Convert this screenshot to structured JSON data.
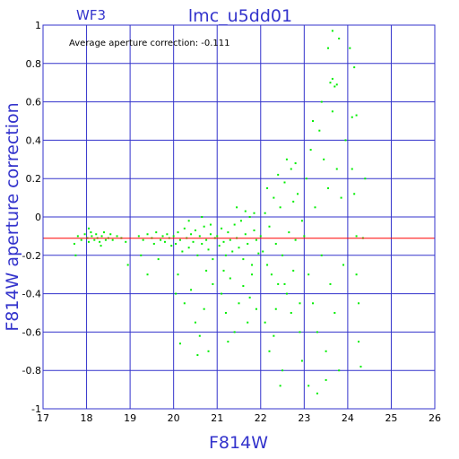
{
  "chart_data": {
    "type": "scatter",
    "title": "lmc_u5dd01",
    "corner_label": "WF3",
    "annotation": "Average aperture correction: -0.111",
    "xlabel": "F814W",
    "ylabel": "F814W aperture correction",
    "xlim": [
      17,
      26
    ],
    "ylim": [
      -1,
      1
    ],
    "x_ticks": [
      17,
      18,
      19,
      20,
      21,
      22,
      23,
      24,
      25,
      26
    ],
    "y_ticks": [
      -1,
      -0.8,
      -0.6,
      -0.4,
      -0.2,
      0,
      0.2,
      0.4,
      0.6,
      0.8,
      1
    ],
    "x_tick_labels": [
      "17",
      "18",
      "19",
      "20",
      "21",
      "22",
      "23",
      "24",
      "25",
      "26"
    ],
    "y_tick_labels": [
      "-1",
      "-0.8",
      "-0.6",
      "-0.4",
      "-0.2",
      "0",
      "0.2",
      "0.4",
      "0.6",
      "0.8",
      "1"
    ],
    "grid": true,
    "reference_line": {
      "y": -0.111,
      "color": "#ff0000"
    },
    "point_color": "#00ee00",
    "axis_color": "#3333cc",
    "points": [
      [
        17.72,
        -0.14
      ],
      [
        17.8,
        -0.1
      ],
      [
        17.88,
        -0.12
      ],
      [
        17.96,
        -0.09
      ],
      [
        18.02,
        -0.11
      ],
      [
        18.05,
        -0.13
      ],
      [
        18.1,
        -0.08
      ],
      [
        18.12,
        -0.1
      ],
      [
        18.18,
        -0.12
      ],
      [
        18.22,
        -0.09
      ],
      [
        18.25,
        -0.11
      ],
      [
        18.3,
        -0.13
      ],
      [
        18.35,
        -0.1
      ],
      [
        18.4,
        -0.08
      ],
      [
        18.44,
        -0.12
      ],
      [
        18.5,
        -0.11
      ],
      [
        18.55,
        -0.09
      ],
      [
        18.6,
        -0.12
      ],
      [
        18.7,
        -0.1
      ],
      [
        18.8,
        -0.11
      ],
      [
        18.9,
        -0.13
      ],
      [
        17.75,
        -0.2
      ],
      [
        18.05,
        -0.06
      ],
      [
        18.33,
        -0.15
      ],
      [
        18.95,
        -0.25
      ],
      [
        19.2,
        -0.1
      ],
      [
        19.3,
        -0.12
      ],
      [
        19.4,
        -0.09
      ],
      [
        19.5,
        -0.11
      ],
      [
        19.55,
        -0.14
      ],
      [
        19.6,
        -0.08
      ],
      [
        19.7,
        -0.12
      ],
      [
        19.75,
        -0.1
      ],
      [
        19.8,
        -0.13
      ],
      [
        19.85,
        -0.09
      ],
      [
        19.9,
        -0.11
      ],
      [
        19.95,
        -0.15
      ],
      [
        19.4,
        -0.3
      ],
      [
        19.65,
        -0.22
      ],
      [
        19.25,
        -0.2
      ],
      [
        20.0,
        -0.1
      ],
      [
        20.05,
        -0.14
      ],
      [
        20.1,
        -0.08
      ],
      [
        20.15,
        -0.12
      ],
      [
        20.2,
        -0.18
      ],
      [
        20.25,
        -0.06
      ],
      [
        20.3,
        -0.11
      ],
      [
        20.35,
        -0.16
      ],
      [
        20.4,
        -0.09
      ],
      [
        20.45,
        -0.13
      ],
      [
        20.5,
        -0.07
      ],
      [
        20.55,
        -0.2
      ],
      [
        20.6,
        -0.1
      ],
      [
        20.65,
        -0.14
      ],
      [
        20.7,
        -0.05
      ],
      [
        20.75,
        -0.12
      ],
      [
        20.8,
        -0.17
      ],
      [
        20.85,
        -0.09
      ],
      [
        20.9,
        -0.22
      ],
      [
        20.95,
        -0.11
      ],
      [
        20.1,
        -0.3
      ],
      [
        20.25,
        -0.45
      ],
      [
        20.4,
        -0.38
      ],
      [
        20.5,
        -0.55
      ],
      [
        20.6,
        -0.62
      ],
      [
        20.7,
        -0.48
      ],
      [
        20.8,
        -0.7
      ],
      [
        20.9,
        -0.35
      ],
      [
        20.15,
        -0.66
      ],
      [
        20.55,
        -0.72
      ],
      [
        20.35,
        -0.02
      ],
      [
        20.65,
        0.0
      ],
      [
        20.85,
        -0.04
      ],
      [
        20.05,
        -0.4
      ],
      [
        20.75,
        -0.28
      ],
      [
        21.0,
        -0.1
      ],
      [
        21.05,
        -0.15
      ],
      [
        21.1,
        -0.06
      ],
      [
        21.15,
        -0.13
      ],
      [
        21.2,
        -0.2
      ],
      [
        21.25,
        -0.08
      ],
      [
        21.3,
        -0.12
      ],
      [
        21.35,
        -0.18
      ],
      [
        21.4,
        -0.04
      ],
      [
        21.45,
        -0.11
      ],
      [
        21.5,
        -0.16
      ],
      [
        21.55,
        -0.02
      ],
      [
        21.6,
        -0.22
      ],
      [
        21.65,
        -0.09
      ],
      [
        21.7,
        -0.14
      ],
      [
        21.75,
        0.0
      ],
      [
        21.8,
        -0.25
      ],
      [
        21.85,
        -0.07
      ],
      [
        21.9,
        -0.12
      ],
      [
        21.95,
        -0.19
      ],
      [
        21.1,
        -0.4
      ],
      [
        21.2,
        -0.5
      ],
      [
        21.3,
        -0.32
      ],
      [
        21.4,
        -0.6
      ],
      [
        21.5,
        -0.45
      ],
      [
        21.6,
        -0.36
      ],
      [
        21.7,
        -0.55
      ],
      [
        21.8,
        -0.3
      ],
      [
        21.9,
        -0.48
      ],
      [
        21.25,
        -0.65
      ],
      [
        21.45,
        0.05
      ],
      [
        21.65,
        0.03
      ],
      [
        21.85,
        0.02
      ],
      [
        21.15,
        -0.28
      ],
      [
        21.75,
        -0.42
      ],
      [
        22.0,
        -0.1
      ],
      [
        22.05,
        -0.18
      ],
      [
        22.1,
        0.02
      ],
      [
        22.15,
        -0.25
      ],
      [
        22.2,
        -0.05
      ],
      [
        22.25,
        -0.3
      ],
      [
        22.3,
        0.1
      ],
      [
        22.35,
        -0.14
      ],
      [
        22.4,
        -0.35
      ],
      [
        22.45,
        0.05
      ],
      [
        22.5,
        -0.2
      ],
      [
        22.55,
        0.18
      ],
      [
        22.6,
        -0.4
      ],
      [
        22.65,
        -0.08
      ],
      [
        22.7,
        0.25
      ],
      [
        22.75,
        -0.28
      ],
      [
        22.8,
        -0.12
      ],
      [
        22.85,
        0.12
      ],
      [
        22.9,
        -0.45
      ],
      [
        22.95,
        -0.02
      ],
      [
        22.1,
        -0.55
      ],
      [
        22.2,
        -0.7
      ],
      [
        22.3,
        -0.62
      ],
      [
        22.4,
        0.22
      ],
      [
        22.5,
        -0.8
      ],
      [
        22.6,
        0.3
      ],
      [
        22.7,
        -0.5
      ],
      [
        22.8,
        0.28
      ],
      [
        22.9,
        -0.6
      ],
      [
        22.45,
        -0.88
      ],
      [
        22.15,
        0.15
      ],
      [
        22.35,
        -0.48
      ],
      [
        22.55,
        -0.35
      ],
      [
        22.75,
        0.08
      ],
      [
        22.95,
        -0.75
      ],
      [
        23.0,
        -0.1
      ],
      [
        23.05,
        0.2
      ],
      [
        23.1,
        -0.3
      ],
      [
        23.15,
        0.35
      ],
      [
        23.2,
        -0.45
      ],
      [
        23.25,
        0.05
      ],
      [
        23.3,
        -0.6
      ],
      [
        23.35,
        0.45
      ],
      [
        23.4,
        -0.2
      ],
      [
        23.45,
        0.3
      ],
      [
        23.5,
        -0.7
      ],
      [
        23.55,
        0.15
      ],
      [
        23.6,
        -0.35
      ],
      [
        23.65,
        0.55
      ],
      [
        23.7,
        -0.5
      ],
      [
        23.75,
        0.25
      ],
      [
        23.8,
        -0.8
      ],
      [
        23.85,
        0.1
      ],
      [
        23.9,
        -0.25
      ],
      [
        23.95,
        0.4
      ],
      [
        23.1,
        -0.88
      ],
      [
        23.2,
        0.5
      ],
      [
        23.3,
        -0.92
      ],
      [
        23.4,
        0.6
      ],
      [
        23.5,
        -0.85
      ],
      [
        23.6,
        0.7
      ],
      [
        23.7,
        0.68
      ],
      [
        23.65,
        0.72
      ],
      [
        23.75,
        0.69
      ],
      [
        23.55,
        0.88
      ],
      [
        23.65,
        0.97
      ],
      [
        23.8,
        0.93
      ],
      [
        24.05,
        0.88
      ],
      [
        24.15,
        0.78
      ],
      [
        24.1,
        0.52
      ],
      [
        24.2,
        0.53
      ],
      [
        24.15,
        0.12
      ],
      [
        24.2,
        -0.3
      ],
      [
        24.25,
        -0.65
      ],
      [
        24.3,
        -0.78
      ],
      [
        24.2,
        -0.1
      ],
      [
        24.35,
        -0.11
      ],
      [
        24.1,
        0.25
      ],
      [
        24.4,
        0.2
      ],
      [
        24.25,
        -0.45
      ]
    ]
  }
}
